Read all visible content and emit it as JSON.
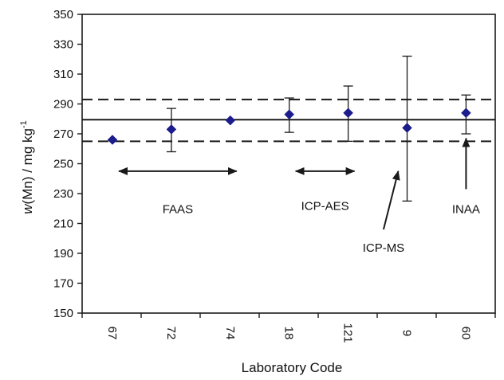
{
  "chart_data": {
    "type": "scatter",
    "title": "",
    "xlabel": "Laboratory Code",
    "ylabel_parts": {
      "sym": "w",
      "rest": "(Mn) / mg kg",
      "sup": "-1"
    },
    "ylim": [
      150,
      350
    ],
    "yticks": [
      150,
      170,
      190,
      210,
      230,
      250,
      270,
      290,
      310,
      330,
      350
    ],
    "grid": false,
    "legend": "none",
    "categories": [
      "67",
      "72",
      "74",
      "18",
      "121",
      "9",
      "60"
    ],
    "series": [
      {
        "values": [
          266,
          273,
          279,
          283,
          284,
          274,
          284
        ],
        "error_low": [
          266,
          258,
          279,
          271,
          265,
          225,
          270
        ],
        "error_high": [
          266,
          287,
          279,
          294,
          302,
          322,
          296
        ],
        "marker": "diamond",
        "color": "#1c1c8c"
      }
    ],
    "reference_lines": [
      {
        "y": 279.5,
        "style": "solid"
      },
      {
        "y": 293,
        "style": "dashed"
      },
      {
        "y": 265,
        "style": "dashed"
      }
    ],
    "annotations": [
      {
        "text": "FAAS",
        "type": "range",
        "from_index": 0,
        "to_index": 2,
        "y": 245,
        "label_y": 217
      },
      {
        "text": "ICP-AES",
        "type": "range",
        "from_index": 3,
        "to_index": 4,
        "y": 245,
        "label_y": 219
      },
      {
        "text": "ICP-MS",
        "type": "pointer",
        "tip_x": 4.85,
        "tip_y": 245,
        "tail_x": 4.6,
        "tail_y": 206,
        "label_x": 4.6,
        "label_y": 191
      },
      {
        "text": "INAA",
        "type": "pointer",
        "tip_x": 6,
        "tip_y": 267,
        "tail_x": 6,
        "tail_y": 233,
        "label_x": 6,
        "label_y": 217
      }
    ],
    "colors": {
      "marker": "#1c1c8c",
      "lines": "#1a1a1a",
      "axis": "#1a1a1a"
    }
  }
}
